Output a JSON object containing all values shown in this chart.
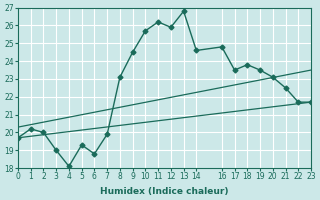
{
  "xlabel": "Humidex (Indice chaleur)",
  "bg_color": "#cce8e8",
  "grid_color": "#ffffff",
  "line_color": "#1a6b5a",
  "xlim": [
    0,
    23
  ],
  "ylim": [
    18,
    27
  ],
  "xticks": [
    0,
    1,
    2,
    3,
    4,
    5,
    6,
    7,
    8,
    9,
    10,
    11,
    12,
    13,
    14,
    16,
    17,
    18,
    19,
    20,
    21,
    22,
    23
  ],
  "yticks": [
    18,
    19,
    20,
    21,
    22,
    23,
    24,
    25,
    26,
    27
  ],
  "curve1_x": [
    0,
    1,
    2,
    3,
    4,
    5,
    6,
    7,
    8,
    9,
    10,
    11,
    12,
    13,
    14,
    16,
    17,
    18,
    19,
    20,
    21,
    22,
    23
  ],
  "curve1_y": [
    19.7,
    20.2,
    20.0,
    19.0,
    18.1,
    19.3,
    18.8,
    19.9,
    23.1,
    24.5,
    25.7,
    26.2,
    25.9,
    26.8,
    24.6,
    24.8,
    23.5,
    23.8,
    23.5,
    23.1,
    22.5,
    21.7,
    21.7
  ],
  "line2_x": [
    0,
    23
  ],
  "line2_y": [
    19.7,
    21.7
  ],
  "line3_x": [
    0,
    23
  ],
  "line3_y": [
    20.3,
    23.5
  ]
}
